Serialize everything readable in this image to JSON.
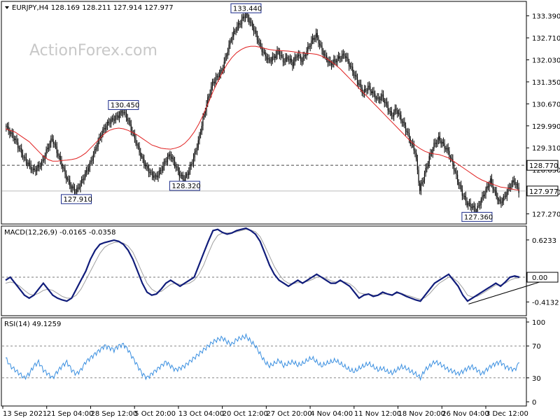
{
  "chart_data": [
    {
      "type": "candlestick",
      "title": "EURJPY,H4  128.169 128.211 127.914 127.977",
      "watermark": "ActionForex.com",
      "ylim": [
        127.0,
        133.75
      ],
      "y_ticks": [
        "133.390",
        "132.710",
        "132.030",
        "131.350",
        "130.670",
        "129.990",
        "129.310",
        "128.630",
        "127.950",
        "127.270"
      ],
      "y_tick_values": [
        133.39,
        132.71,
        132.03,
        131.35,
        130.67,
        129.99,
        129.31,
        128.63,
        127.95,
        127.27
      ],
      "close_series": [
        130.0,
        129.8,
        129.6,
        129.3,
        129.0,
        128.8,
        128.6,
        128.7,
        128.9,
        129.3,
        129.6,
        129.2,
        128.8,
        128.4,
        128.1,
        127.95,
        128.2,
        128.5,
        128.8,
        129.2,
        129.6,
        129.9,
        130.1,
        130.2,
        130.3,
        130.45,
        130.2,
        129.8,
        129.4,
        129.0,
        128.7,
        128.5,
        128.4,
        128.6,
        128.9,
        129.1,
        128.8,
        128.5,
        128.32,
        128.6,
        129.0,
        129.5,
        130.2,
        130.8,
        131.3,
        131.5,
        131.7,
        132.2,
        132.7,
        133.0,
        133.2,
        133.44,
        133.2,
        132.9,
        132.5,
        132.2,
        132.0,
        132.1,
        132.3,
        132.0,
        132.1,
        131.9,
        132.2,
        132.0,
        132.3,
        132.6,
        132.8,
        132.4,
        132.1,
        131.9,
        132.0,
        132.1,
        132.2,
        131.9,
        131.6,
        131.3,
        131.0,
        131.2,
        131.0,
        130.8,
        130.9,
        130.6,
        130.3,
        130.5,
        130.2,
        129.9,
        129.5,
        129.2,
        128.0,
        128.5,
        129.0,
        129.4,
        129.6,
        129.4,
        129.2,
        128.8,
        128.3,
        127.9,
        127.6,
        127.5,
        127.36,
        127.7,
        128.0,
        128.3,
        127.9,
        127.6,
        127.8,
        128.1,
        128.3,
        127.977
      ],
      "ma_series": [
        129.9,
        129.85,
        129.8,
        129.7,
        129.6,
        129.5,
        129.35,
        129.2,
        129.05,
        128.95,
        128.9,
        128.9,
        128.92,
        128.93,
        128.95,
        128.98,
        129.05,
        129.15,
        129.3,
        129.45,
        129.6,
        129.75,
        129.85,
        129.9,
        129.92,
        129.9,
        129.85,
        129.78,
        129.7,
        129.6,
        129.5,
        129.4,
        129.35,
        129.3,
        129.28,
        129.27,
        129.3,
        129.35,
        129.45,
        129.6,
        129.8,
        130.05,
        130.35,
        130.7,
        131.05,
        131.35,
        131.65,
        131.9,
        132.1,
        132.25,
        132.35,
        132.42,
        132.45,
        132.45,
        132.42,
        132.38,
        132.35,
        132.33,
        132.32,
        132.31,
        132.3,
        132.28,
        132.26,
        132.24,
        132.23,
        132.22,
        132.2,
        132.15,
        132.08,
        131.98,
        131.87,
        131.75,
        131.6,
        131.45,
        131.3,
        131.15,
        131.0,
        130.85,
        130.7,
        130.55,
        130.4,
        130.25,
        130.1,
        129.95,
        129.8,
        129.65,
        129.5,
        129.38,
        129.28,
        129.2,
        129.15,
        129.12,
        129.1,
        129.05,
        129.0,
        128.9,
        128.8,
        128.7,
        128.6,
        128.5,
        128.4,
        128.32,
        128.26,
        128.2,
        128.15,
        128.1,
        128.08,
        128.05,
        128.02,
        128.0
      ],
      "annotations": [
        {
          "text": "133.440",
          "x": 51,
          "y": 133.44,
          "pos": "above"
        },
        {
          "text": "130.450",
          "x": 25,
          "y": 130.45,
          "pos": "above"
        },
        {
          "text": "128.320",
          "x": 38,
          "y": 128.32,
          "pos": "below"
        },
        {
          "text": "127.910",
          "x": 15,
          "y": 127.91,
          "pos": "below"
        },
        {
          "text": "127.360",
          "x": 100,
          "y": 127.36,
          "pos": "below"
        }
      ],
      "dashed_level": {
        "label": "128.770",
        "value": 128.77
      },
      "current_price": {
        "label": "127.977",
        "value": 127.977
      }
    },
    {
      "type": "line",
      "title": "MACD(12,26,9) -0.0165 -0.0358",
      "ylim": [
        -0.62,
        0.82
      ],
      "y_ticks": [
        "0.6233",
        "0.00",
        "-0.4132"
      ],
      "y_tick_values": [
        0.6233,
        0.0,
        -0.4132
      ],
      "current_label": "0.00",
      "series": [
        {
          "values": [
            -0.05,
            0.0,
            -0.1,
            -0.2,
            -0.3,
            -0.35,
            -0.3,
            -0.2,
            -0.1,
            -0.2,
            -0.3,
            -0.35,
            -0.38,
            -0.4,
            -0.35,
            -0.2,
            -0.05,
            0.1,
            0.3,
            0.45,
            0.55,
            0.58,
            0.6,
            0.62,
            0.6,
            0.55,
            0.45,
            0.3,
            0.1,
            -0.1,
            -0.25,
            -0.3,
            -0.28,
            -0.2,
            -0.1,
            -0.05,
            -0.1,
            -0.15,
            -0.1,
            -0.05,
            0.0,
            0.2,
            0.4,
            0.6,
            0.78,
            0.8,
            0.75,
            0.72,
            0.74,
            0.78,
            0.8,
            0.82,
            0.78,
            0.72,
            0.6,
            0.4,
            0.2,
            0.05,
            -0.05,
            -0.1,
            -0.15,
            -0.1,
            -0.05,
            -0.1,
            -0.05,
            0.0,
            0.05,
            0.0,
            -0.05,
            -0.1,
            -0.1,
            -0.05,
            -0.1,
            -0.15,
            -0.25,
            -0.35,
            -0.3,
            -0.28,
            -0.32,
            -0.3,
            -0.25,
            -0.28,
            -0.3,
            -0.25,
            -0.28,
            -0.32,
            -0.35,
            -0.38,
            -0.4,
            -0.3,
            -0.2,
            -0.1,
            -0.05,
            0.0,
            0.05,
            -0.05,
            -0.15,
            -0.3,
            -0.4,
            -0.35,
            -0.3,
            -0.25,
            -0.2,
            -0.15,
            -0.1,
            -0.15,
            -0.08,
            0.0,
            0.02,
            0.0
          ]
        },
        {
          "values": [
            -0.1,
            -0.08,
            -0.1,
            -0.15,
            -0.22,
            -0.28,
            -0.3,
            -0.27,
            -0.22,
            -0.2,
            -0.22,
            -0.27,
            -0.32,
            -0.35,
            -0.35,
            -0.3,
            -0.2,
            -0.05,
            0.1,
            0.25,
            0.4,
            0.5,
            0.55,
            0.58,
            0.59,
            0.57,
            0.52,
            0.42,
            0.25,
            0.07,
            -0.1,
            -0.2,
            -0.25,
            -0.24,
            -0.18,
            -0.12,
            -0.1,
            -0.12,
            -0.12,
            -0.1,
            -0.05,
            0.05,
            0.2,
            0.4,
            0.58,
            0.7,
            0.74,
            0.74,
            0.74,
            0.76,
            0.78,
            0.8,
            0.79,
            0.76,
            0.68,
            0.52,
            0.35,
            0.18,
            0.05,
            -0.05,
            -0.1,
            -0.11,
            -0.09,
            -0.09,
            -0.07,
            -0.04,
            0.0,
            0.01,
            -0.02,
            -0.06,
            -0.08,
            -0.07,
            -0.08,
            -0.11,
            -0.17,
            -0.26,
            -0.28,
            -0.28,
            -0.3,
            -0.3,
            -0.28,
            -0.28,
            -0.29,
            -0.27,
            -0.27,
            -0.3,
            -0.32,
            -0.35,
            -0.37,
            -0.34,
            -0.27,
            -0.18,
            -0.1,
            -0.05,
            0.0,
            -0.02,
            -0.08,
            -0.18,
            -0.3,
            -0.33,
            -0.32,
            -0.28,
            -0.23,
            -0.18,
            -0.13,
            -0.13,
            -0.1,
            -0.05,
            -0.02,
            -0.01
          ]
        }
      ],
      "trendline": {
        "start": [
          100,
          -0.4132
        ],
        "end": [
          112,
          -0.1
        ]
      }
    },
    {
      "type": "line",
      "title": "RSI(14) 49.1259",
      "ylim": [
        0,
        100
      ],
      "y_ticks": [
        "100",
        "70",
        "30",
        "0"
      ],
      "y_tick_values": [
        100,
        70,
        30,
        0
      ],
      "series": [
        {
          "values": [
            55,
            45,
            40,
            35,
            30,
            35,
            45,
            50,
            40,
            35,
            30,
            38,
            45,
            50,
            40,
            35,
            40,
            50,
            55,
            60,
            65,
            70,
            68,
            65,
            70,
            72,
            65,
            55,
            45,
            35,
            30,
            35,
            40,
            45,
            50,
            45,
            40,
            42,
            45,
            50,
            55,
            60,
            65,
            70,
            75,
            78,
            80,
            75,
            72,
            78,
            80,
            82,
            76,
            70,
            60,
            50,
            45,
            48,
            52,
            45,
            48,
            50,
            46,
            48,
            52,
            55,
            50,
            45,
            48,
            50,
            52,
            48,
            44,
            40,
            38,
            42,
            45,
            48,
            44,
            40,
            42,
            38,
            36,
            40,
            44,
            42,
            38,
            35,
            30,
            40,
            45,
            50,
            48,
            44,
            40,
            38,
            35,
            38,
            42,
            44,
            40,
            35,
            40,
            45,
            48,
            50,
            44,
            42,
            40,
            49
          ]
        }
      ]
    }
  ],
  "x_axis": {
    "labels": [
      "13 Sep 2021",
      "21 Sep 04:00",
      "28 Sep 12:00",
      "5 Oct 20:00",
      "13 Oct 04:00",
      "20 Oct 12:00",
      "27 Oct 20:00",
      "4 Nov 04:00",
      "11 Nov 12:00",
      "18 Nov 20:00",
      "26 Nov 04:00",
      "3 Dec 12:00"
    ]
  }
}
